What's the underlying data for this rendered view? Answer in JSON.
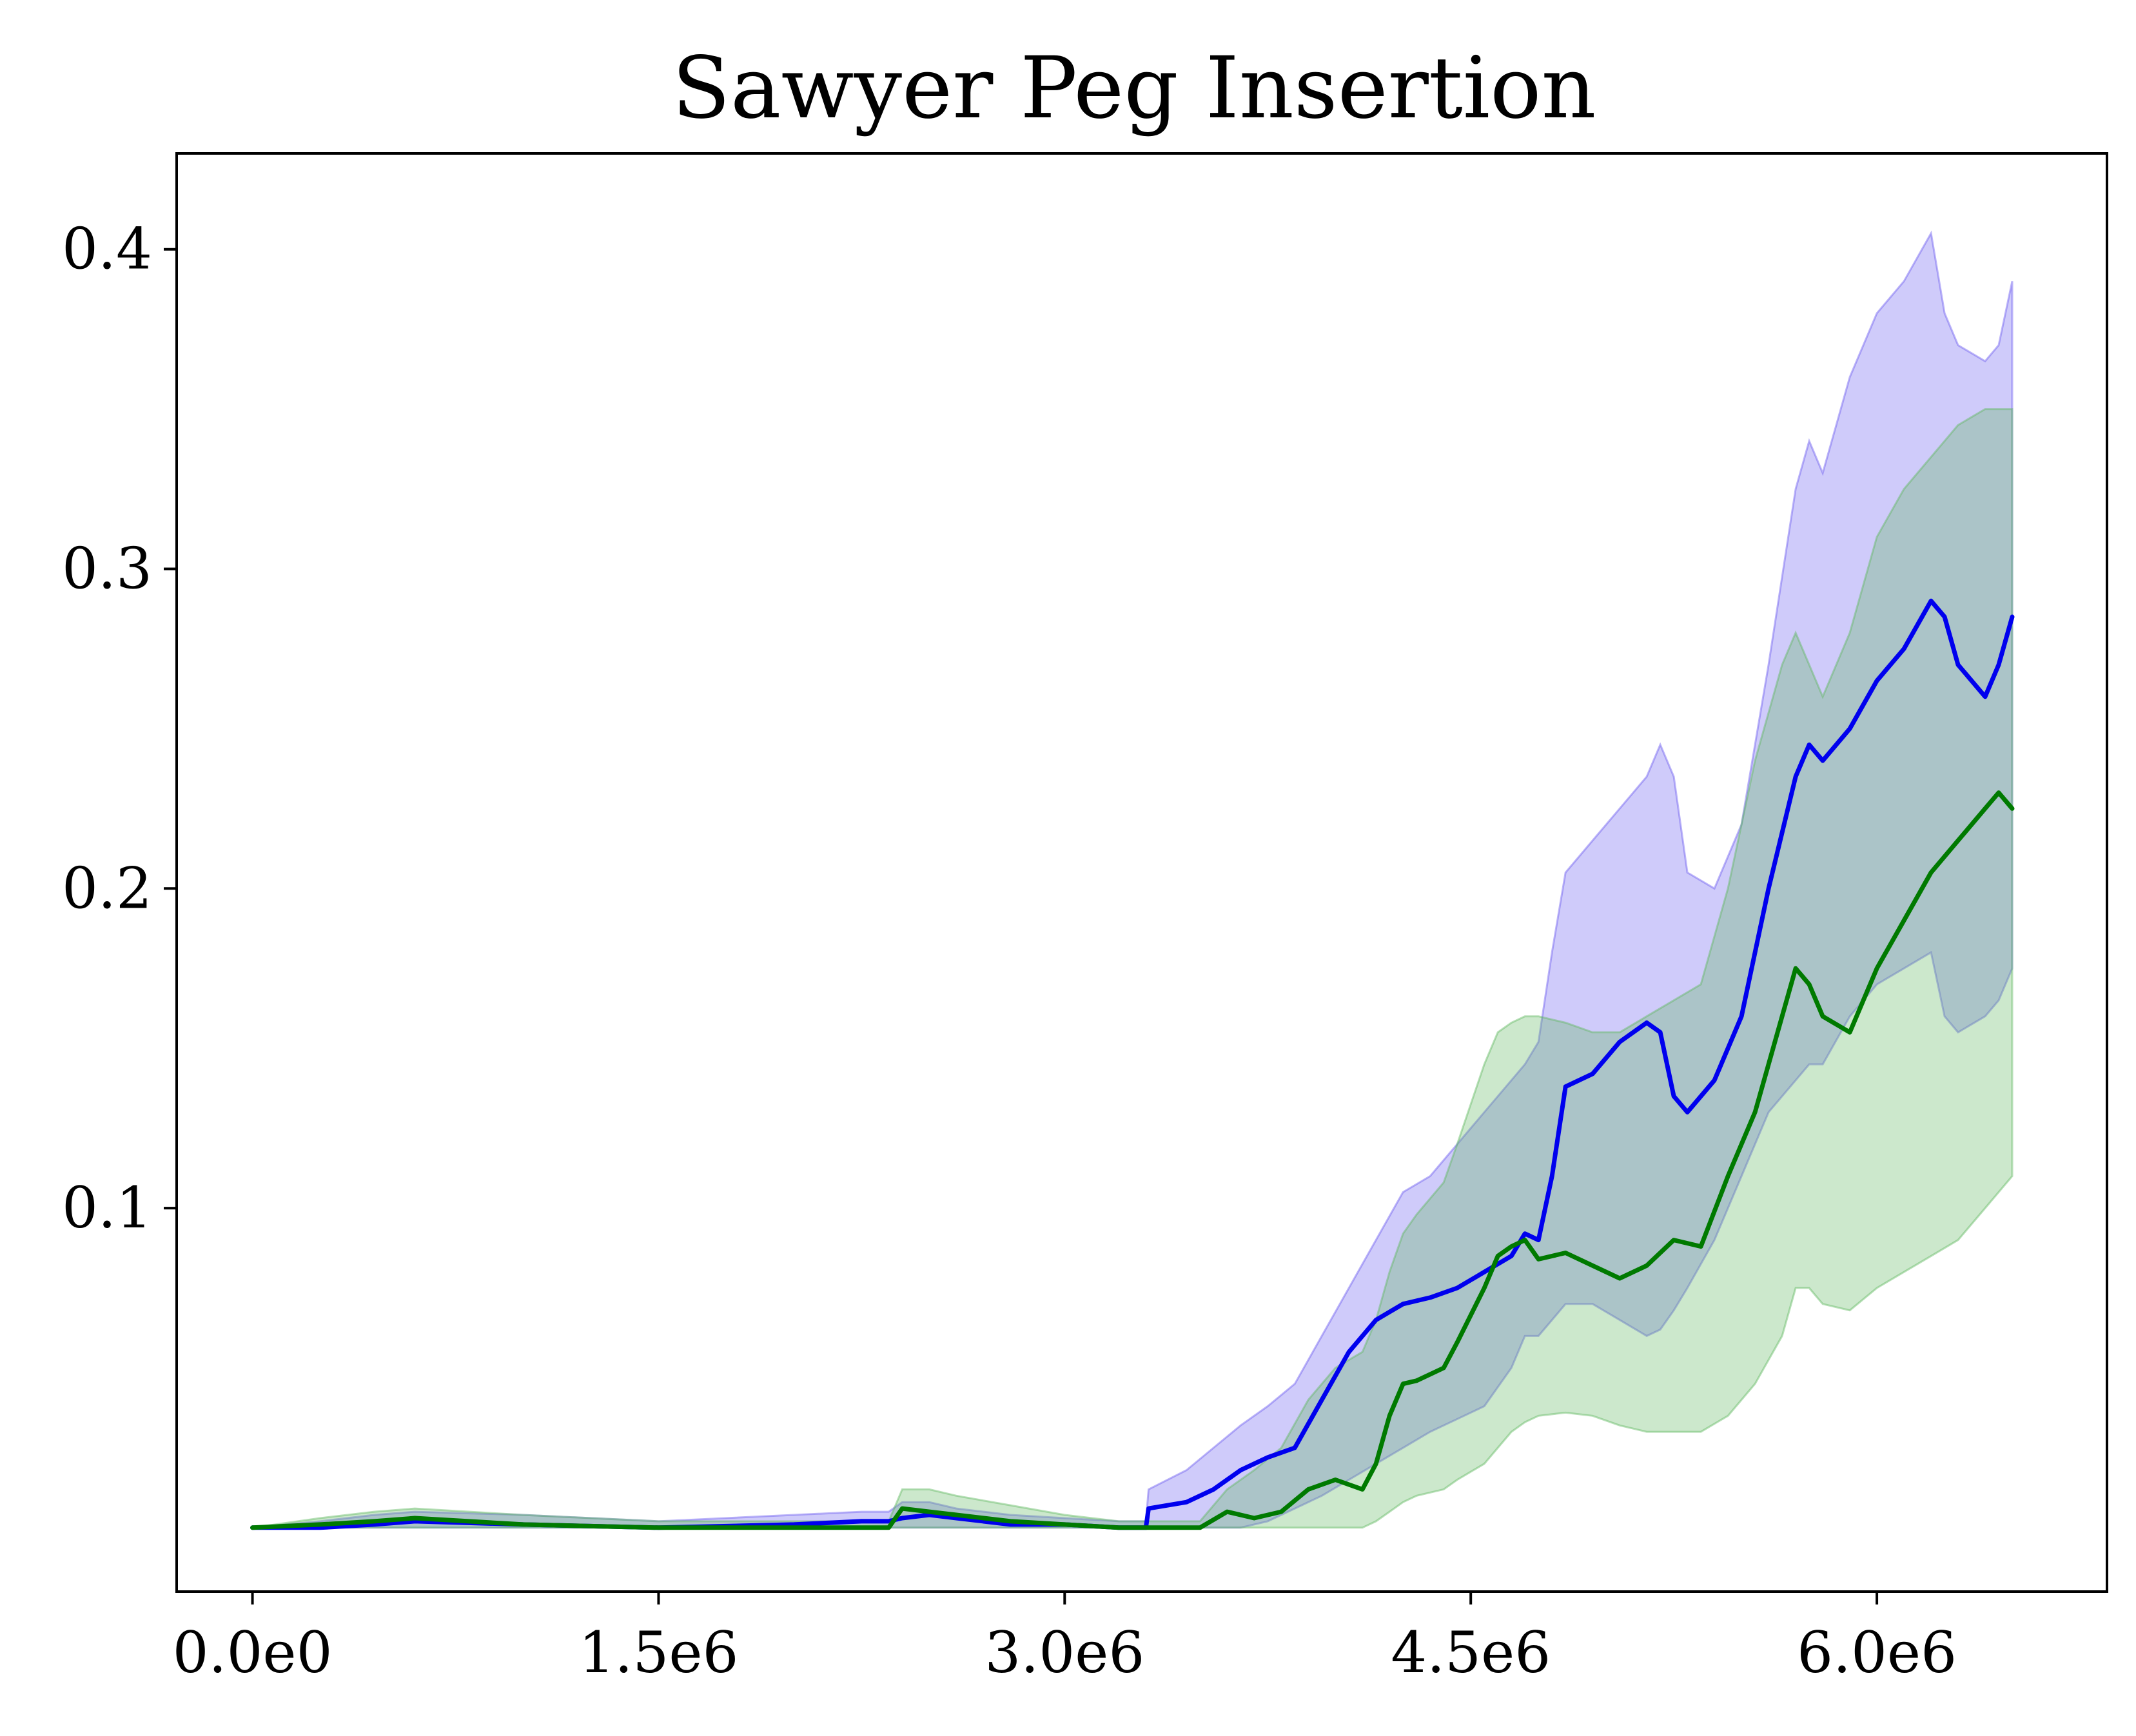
{
  "chart_data": {
    "type": "line",
    "title": "Sawyer Peg Insertion",
    "xlabel": "",
    "ylabel": "",
    "xlim": [
      -280000,
      6850000
    ],
    "ylim": [
      -0.02,
      0.43
    ],
    "x_ticks": [
      0,
      1500000,
      3000000,
      4500000,
      6000000
    ],
    "x_tick_labels": [
      "0.0e0",
      "1.5e6",
      "3.0e6",
      "4.5e6",
      "6.0e6"
    ],
    "y_ticks": [
      0.1,
      0.2,
      0.3,
      0.4
    ],
    "y_tick_labels": [
      "0.1",
      "0.2",
      "0.3",
      "0.4"
    ],
    "grid": false,
    "legend": null,
    "series": [
      {
        "name": "blue",
        "color": "#0000ee",
        "band_color": "#6b5cf0",
        "x": [
          0,
          250000,
          450000,
          600000,
          1000000,
          1500000,
          2000000,
          2250000,
          2350000,
          2400000,
          2500000,
          2600000,
          2800000,
          3000000,
          3200000,
          3300000,
          3310000,
          3450000,
          3550000,
          3650000,
          3750000,
          3850000,
          3950000,
          4050000,
          4150000,
          4250000,
          4350000,
          4450000,
          4550000,
          4650000,
          4700000,
          4750000,
          4800000,
          4850000,
          4950000,
          5050000,
          5150000,
          5200000,
          5250000,
          5300000,
          5400000,
          5500000,
          5600000,
          5700000,
          5750000,
          5800000,
          5900000,
          6000000,
          6100000,
          6200000,
          6250000,
          6300000,
          6400000,
          6450000,
          6500000
        ],
        "y": [
          0.0,
          0.0,
          0.001,
          0.002,
          0.001,
          0.0,
          0.001,
          0.002,
          0.002,
          0.003,
          0.004,
          0.003,
          0.001,
          0.001,
          0.0,
          0.0,
          0.006,
          0.008,
          0.012,
          0.018,
          0.022,
          0.025,
          0.04,
          0.055,
          0.065,
          0.07,
          0.072,
          0.075,
          0.08,
          0.085,
          0.092,
          0.09,
          0.11,
          0.138,
          0.142,
          0.152,
          0.158,
          0.155,
          0.135,
          0.13,
          0.14,
          0.16,
          0.2,
          0.235,
          0.245,
          0.24,
          0.25,
          0.265,
          0.275,
          0.29,
          0.285,
          0.27,
          0.26,
          0.27,
          0.285
        ],
        "lower": [
          0.0,
          0.0,
          0.0,
          0.0,
          0.0,
          0.0,
          0.0,
          0.0,
          0.0,
          0.0,
          0.0,
          0.0,
          0.0,
          0.0,
          0.0,
          0.0,
          0.0,
          0.0,
          0.0,
          0.0,
          0.002,
          0.006,
          0.01,
          0.015,
          0.02,
          0.025,
          0.03,
          0.034,
          0.038,
          0.05,
          0.06,
          0.06,
          0.065,
          0.07,
          0.07,
          0.065,
          0.06,
          0.062,
          0.068,
          0.075,
          0.09,
          0.11,
          0.13,
          0.14,
          0.145,
          0.145,
          0.16,
          0.17,
          0.175,
          0.18,
          0.16,
          0.155,
          0.16,
          0.165,
          0.175
        ],
        "upper": [
          0.0,
          0.002,
          0.004,
          0.005,
          0.004,
          0.002,
          0.004,
          0.005,
          0.005,
          0.008,
          0.008,
          0.006,
          0.004,
          0.003,
          0.002,
          0.002,
          0.012,
          0.018,
          0.025,
          0.032,
          0.038,
          0.045,
          0.06,
          0.075,
          0.09,
          0.105,
          0.11,
          0.12,
          0.13,
          0.14,
          0.145,
          0.152,
          0.18,
          0.205,
          0.215,
          0.225,
          0.235,
          0.245,
          0.235,
          0.205,
          0.2,
          0.22,
          0.27,
          0.325,
          0.34,
          0.33,
          0.36,
          0.38,
          0.39,
          0.405,
          0.38,
          0.37,
          0.365,
          0.37,
          0.39
        ]
      },
      {
        "name": "green",
        "color": "#007a00",
        "band_color": "#5fb85f",
        "x": [
          0,
          250000,
          450000,
          600000,
          1000000,
          1500000,
          2000000,
          2350000,
          2400000,
          2500000,
          2600000,
          2800000,
          3000000,
          3200000,
          3300000,
          3400000,
          3500000,
          3600000,
          3700000,
          3800000,
          3900000,
          4000000,
          4100000,
          4150000,
          4200000,
          4250000,
          4300000,
          4400000,
          4450000,
          4550000,
          4600000,
          4650000,
          4700000,
          4750000,
          4850000,
          4950000,
          5050000,
          5150000,
          5250000,
          5350000,
          5450000,
          5550000,
          5650000,
          5700000,
          5750000,
          5800000,
          5900000,
          6000000,
          6100000,
          6200000,
          6300000,
          6400000,
          6450000,
          6500000
        ],
        "y": [
          0.0,
          0.001,
          0.002,
          0.003,
          0.001,
          0.0,
          0.0,
          0.0,
          0.006,
          0.005,
          0.004,
          0.002,
          0.001,
          0.0,
          0.0,
          0.0,
          0.0,
          0.005,
          0.003,
          0.005,
          0.012,
          0.015,
          0.012,
          0.02,
          0.035,
          0.045,
          0.046,
          0.05,
          0.058,
          0.075,
          0.085,
          0.088,
          0.09,
          0.084,
          0.086,
          0.082,
          0.078,
          0.082,
          0.09,
          0.088,
          0.11,
          0.13,
          0.16,
          0.175,
          0.17,
          0.16,
          0.155,
          0.175,
          0.19,
          0.205,
          0.215,
          0.225,
          0.23,
          0.225
        ],
        "lower": [
          0.0,
          0.0,
          0.0,
          0.0,
          0.0,
          0.0,
          0.0,
          0.0,
          0.0,
          0.0,
          0.0,
          0.0,
          0.0,
          0.0,
          0.0,
          0.0,
          0.0,
          0.0,
          0.0,
          0.0,
          0.0,
          0.0,
          0.0,
          0.002,
          0.005,
          0.008,
          0.01,
          0.012,
          0.015,
          0.02,
          0.025,
          0.03,
          0.033,
          0.035,
          0.036,
          0.035,
          0.032,
          0.03,
          0.03,
          0.03,
          0.035,
          0.045,
          0.06,
          0.075,
          0.075,
          0.07,
          0.068,
          0.075,
          0.08,
          0.085,
          0.09,
          0.1,
          0.105,
          0.11
        ],
        "upper": [
          0.0,
          0.003,
          0.005,
          0.006,
          0.004,
          0.002,
          0.002,
          0.002,
          0.012,
          0.012,
          0.01,
          0.007,
          0.004,
          0.002,
          0.002,
          0.002,
          0.002,
          0.012,
          0.018,
          0.025,
          0.04,
          0.05,
          0.055,
          0.065,
          0.08,
          0.092,
          0.098,
          0.108,
          0.12,
          0.145,
          0.155,
          0.158,
          0.16,
          0.16,
          0.158,
          0.155,
          0.155,
          0.16,
          0.165,
          0.17,
          0.2,
          0.24,
          0.27,
          0.28,
          0.27,
          0.26,
          0.28,
          0.31,
          0.325,
          0.335,
          0.345,
          0.35,
          0.35,
          0.35
        ]
      }
    ]
  }
}
